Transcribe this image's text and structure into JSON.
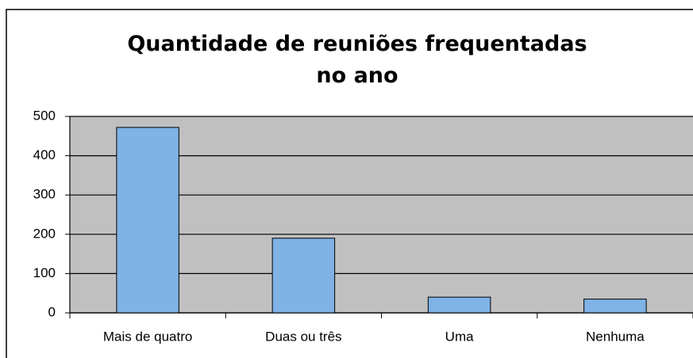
{
  "chart_data": {
    "type": "bar",
    "title": "Quantidade de reuniões frequentadas no ano",
    "categories": [
      "Mais de quatro",
      "Duas ou três",
      "Uma",
      "Nenhuma"
    ],
    "values": [
      472,
      190,
      40,
      35
    ],
    "color": "#7fb2e5",
    "ylim": [
      0,
      500
    ],
    "yticks": [
      0,
      100,
      200,
      300,
      400,
      500
    ],
    "grid": true
  }
}
